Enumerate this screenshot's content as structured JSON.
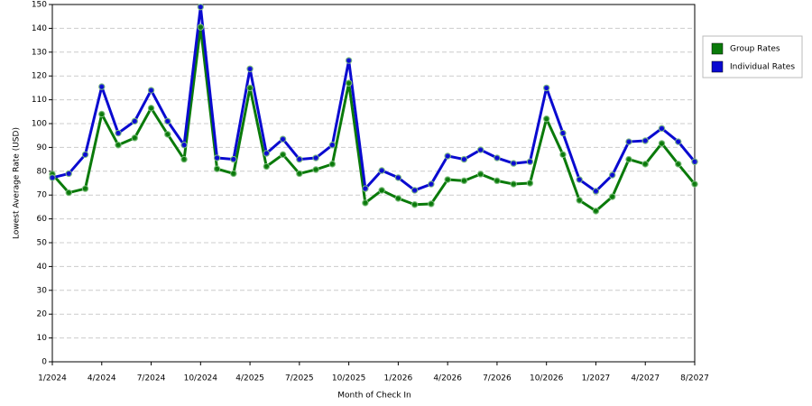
{
  "chart_data": {
    "type": "line",
    "x_label": "Month of Check In",
    "y_label": "Lowest Average Rate (USD)",
    "categories": [
      "1/2024",
      null,
      null,
      "4/2024",
      null,
      null,
      "7/2024",
      null,
      null,
      "10/2024",
      null,
      null,
      "4/2025",
      null,
      null,
      "7/2025",
      null,
      null,
      "10/2025",
      null,
      null,
      "1/2026",
      null,
      null,
      "4/2026",
      null,
      null,
      "7/2026",
      null,
      null,
      "10/2026",
      null,
      null,
      "1/2027",
      null,
      null,
      "4/2027",
      null,
      null,
      "8/2027"
    ],
    "series": [
      {
        "name": "Group Rates",
        "color": "#0a7a0a",
        "values": [
          78.8,
          71,
          72.7,
          104,
          91,
          94,
          106.5,
          95.5,
          85,
          140.5,
          81,
          79,
          115,
          82,
          87,
          79,
          80.7,
          83,
          117,
          66.7,
          72,
          68.6,
          66,
          66.3,
          76.5,
          76,
          78.8,
          76,
          74.6,
          75,
          102,
          87,
          67.8,
          63.3,
          69.3,
          85,
          83,
          91.7,
          83,
          74.6
        ]
      },
      {
        "name": "Individual Rates",
        "color": "#0a0ad0",
        "values": [
          77.3,
          79,
          87,
          115.5,
          96,
          101,
          114,
          101,
          91,
          149,
          85.6,
          85,
          123,
          87.5,
          93.5,
          85,
          85.6,
          91,
          126.5,
          72.7,
          80.3,
          77.3,
          72,
          74.6,
          86.4,
          85,
          89,
          85.6,
          83.3,
          84,
          115,
          96,
          76.5,
          71.6,
          78.4,
          92.4,
          92.8,
          98,
          92.4,
          84
        ]
      }
    ],
    "ylim": [
      0,
      150
    ],
    "yticks": [
      0,
      10,
      20,
      30,
      40,
      50,
      60,
      70,
      80,
      90,
      100,
      110,
      120,
      130,
      140,
      150
    ],
    "grid": true,
    "legend": "right"
  }
}
